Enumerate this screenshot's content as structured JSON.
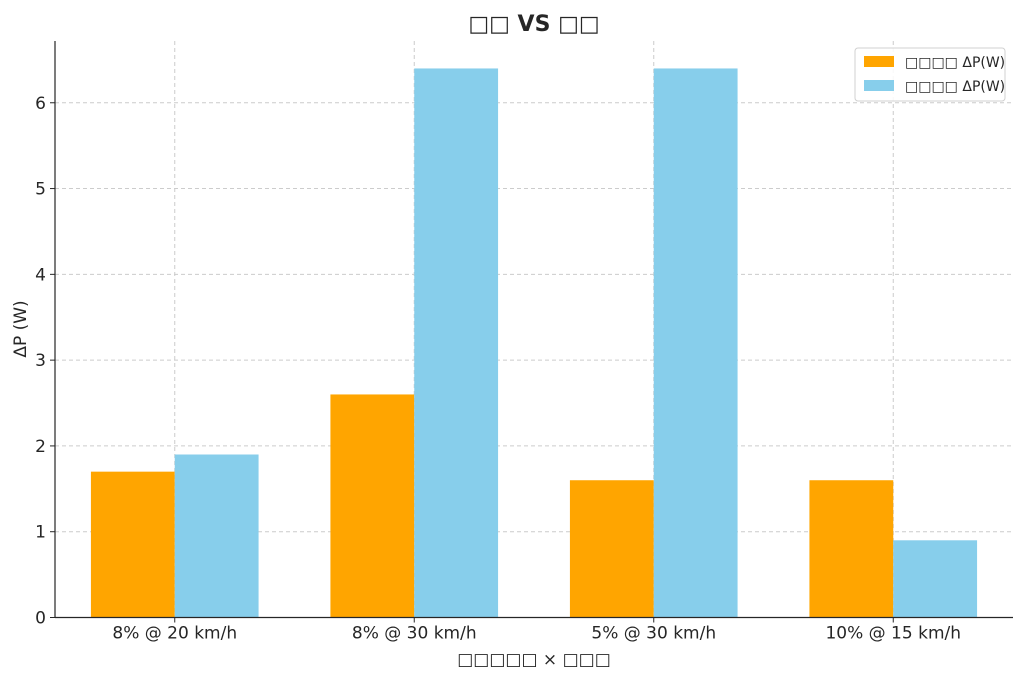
{
  "chart_data": {
    "type": "bar",
    "title": "□□ VS □□",
    "xlabel": "□□□□□ × □□□",
    "ylabel": "ΔP (W)",
    "categories": [
      "8% @ 20 km/h",
      "8% @ 30 km/h",
      "5% @ 30 km/h",
      "10% @ 15 km/h"
    ],
    "series": [
      {
        "name": "□□□□ ΔP(W)",
        "color": "#ffa500",
        "values": [
          1.7,
          2.6,
          1.6,
          1.6
        ]
      },
      {
        "name": "□□□□ ΔP(W)",
        "color": "#87ceeb",
        "values": [
          1.9,
          6.4,
          6.4,
          0.9
        ]
      }
    ],
    "ylim": [
      0,
      6.72
    ],
    "yticks": [
      0,
      1,
      2,
      3,
      4,
      5,
      6
    ],
    "grid": true,
    "legend_position": "top-right"
  }
}
